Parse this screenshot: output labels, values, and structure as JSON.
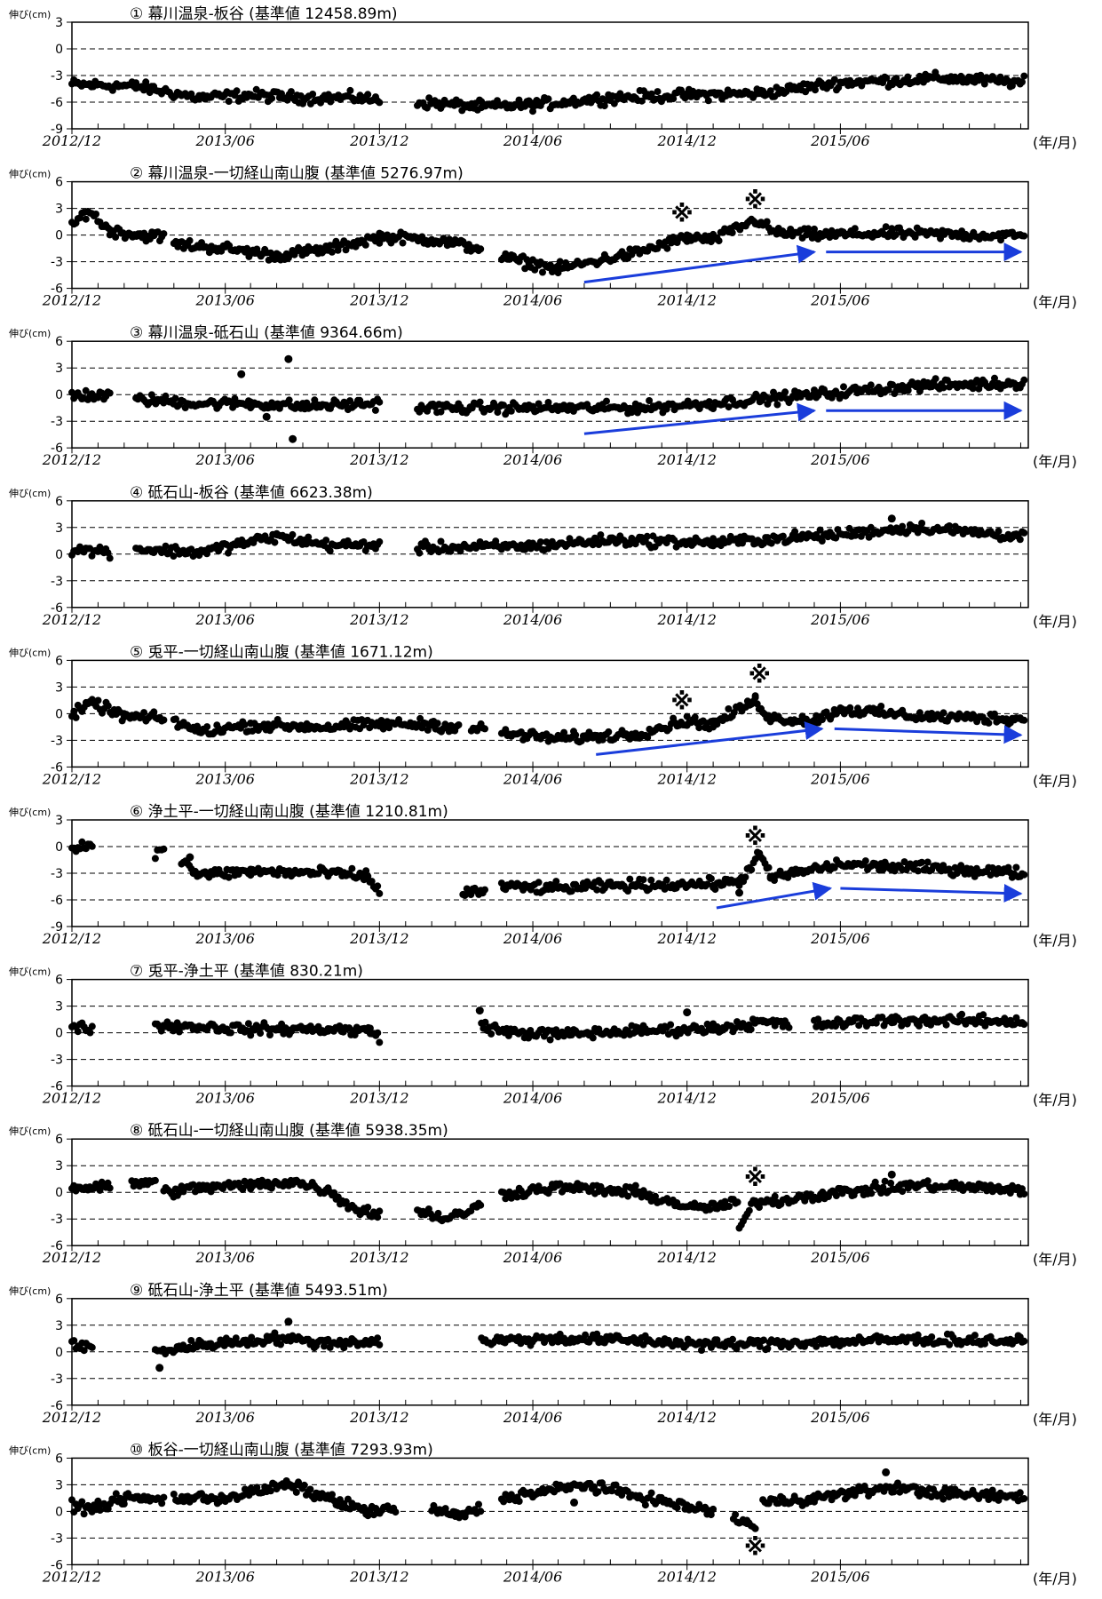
{
  "x_unit_label": "(年/月)",
  "y_unit_label": "伸び(cm)",
  "colors": {
    "dots": "#000000",
    "arrows": "#1a3ddb",
    "grid": "#000000",
    "frame": "#000000"
  },
  "x_ticks": [
    "2012/12",
    "2013/06",
    "2013/12",
    "2014/06",
    "2014/12",
    "2015/06"
  ],
  "chart_data": [
    {
      "type": "scatter",
      "title": "① 幕川温泉-板谷 (基準値 12458.89m)",
      "ylim": [
        -9,
        3
      ],
      "yticks": [
        3,
        0,
        -3,
        -6,
        -9
      ],
      "segments": [
        {
          "x": [
            "2012-12-01",
            "2013-02-15",
            "2013-05-01",
            "2013-07-01",
            "2013-09-01",
            "2013-11-01",
            "2013-12-01"
          ],
          "y": [
            -4.0,
            -4.2,
            -5.5,
            -5.2,
            -5.5,
            -5.5,
            -5.8
          ]
        },
        {
          "x": [
            "2014-01-15",
            "2014-04-01",
            "2014-06-01",
            "2014-09-01",
            "2014-12-01",
            "2015-03-01",
            "2015-06-01",
            "2015-08-20",
            "2015-10-01",
            "2016-01-05"
          ],
          "y": [
            -6.0,
            -6.5,
            -6.3,
            -5.5,
            -5.2,
            -5.0,
            -3.8,
            -3.5,
            -3.3,
            -3.8
          ]
        }
      ],
      "marks": [],
      "arrows": []
    },
    {
      "type": "scatter",
      "title": "② 幕川温泉-一切経山南山腹 (基準値 5276.97m)",
      "ylim": [
        -6,
        6
      ],
      "yticks": [
        6,
        3,
        0,
        -3,
        -6
      ],
      "segments": [
        {
          "x": [
            "2012-12-01",
            "2012-12-20",
            "2013-01-15",
            "2013-02-20",
            "2013-03-20"
          ],
          "y": [
            1.0,
            2.8,
            0.5,
            0.0,
            -0.2
          ]
        },
        {
          "x": [
            "2013-04-01",
            "2013-06-01",
            "2013-08-01",
            "2013-10-01",
            "2013-12-01",
            "2014-02-01",
            "2014-03-31"
          ],
          "y": [
            -1.0,
            -1.5,
            -2.3,
            -1.6,
            -0.2,
            -0.5,
            -1.5
          ]
        },
        {
          "x": [
            "2014-04-25",
            "2014-07-01",
            "2014-10-01",
            "2014-12-01",
            "2015-01-01",
            "2015-02-20",
            "2015-03-15",
            "2015-05-01",
            "2015-08-01",
            "2016-01-05"
          ],
          "y": [
            -2.5,
            -3.8,
            -2.0,
            -0.3,
            -0.5,
            1.7,
            0.3,
            0.0,
            0.2,
            -0.1
          ]
        }
      ],
      "marks": [
        {
          "x": "2014-11-25",
          "y": 2.5
        },
        {
          "x": "2015-02-20",
          "y": 4.0
        }
      ],
      "arrows": [
        {
          "x1": "2014-08-01",
          "y1": -5.3,
          "x2": "2015-05-01",
          "y2": -1.9
        },
        {
          "x1": "2015-05-15",
          "y1": -1.9,
          "x2": "2016-01-01",
          "y2": -1.9
        }
      ]
    },
    {
      "type": "scatter",
      "title": "③ 幕川温泉-砥石山 (基準値 9364.66m)",
      "ylim": [
        -6,
        6
      ],
      "yticks": [
        6,
        3,
        0,
        -3,
        -6
      ],
      "segments": [
        {
          "x": [
            "2012-12-01",
            "2013-01-15"
          ],
          "y": [
            0.0,
            -0.2
          ]
        },
        {
          "x": [
            "2013-02-15",
            "2013-05-01",
            "2013-07-01",
            "2013-09-01",
            "2013-12-01"
          ],
          "y": [
            -0.5,
            -1.0,
            -1.0,
            -1.3,
            -1.0
          ]
        },
        {
          "x": [
            "2014-01-15",
            "2014-06-01",
            "2014-10-01",
            "2015-01-01",
            "2015-05-01",
            "2015-09-01",
            "2016-01-05"
          ],
          "y": [
            -1.5,
            -1.5,
            -1.5,
            -1.0,
            0.0,
            1.0,
            1.3
          ]
        }
      ],
      "outliers": [
        {
          "x": "2013-08-15",
          "y": 4.0
        },
        {
          "x": "2013-06-20",
          "y": 2.3
        },
        {
          "x": "2013-08-20",
          "y": -5.0
        },
        {
          "x": "2013-07-20",
          "y": -2.5
        }
      ],
      "marks": [],
      "arrows": [
        {
          "x1": "2014-08-01",
          "y1": -4.4,
          "x2": "2015-05-01",
          "y2": -1.8
        },
        {
          "x1": "2015-05-15",
          "y1": -1.8,
          "x2": "2016-01-01",
          "y2": -1.8
        }
      ]
    },
    {
      "type": "scatter",
      "title": "④ 砥石山-板谷 (基準値 6623.38m)",
      "ylim": [
        -6,
        6
      ],
      "yticks": [
        6,
        3,
        0,
        -3,
        -6
      ],
      "segments": [
        {
          "x": [
            "2012-12-01",
            "2013-01-15"
          ],
          "y": [
            0.5,
            0.3
          ]
        },
        {
          "x": [
            "2013-02-15",
            "2013-05-01",
            "2013-08-01",
            "2013-10-01",
            "2013-12-01"
          ],
          "y": [
            0.6,
            0.2,
            2.0,
            1.0,
            1.0
          ]
        },
        {
          "x": [
            "2014-01-15",
            "2014-06-01",
            "2014-09-01",
            "2015-01-01",
            "2015-05-01",
            "2015-09-01",
            "2016-01-05"
          ],
          "y": [
            0.7,
            0.9,
            1.6,
            1.3,
            2.0,
            3.0,
            2.0
          ]
        }
      ],
      "outliers": [
        {
          "x": "2015-08-01",
          "y": 4.0
        }
      ],
      "marks": [],
      "arrows": []
    },
    {
      "type": "scatter",
      "title": "⑤ 兎平-一切経山南山腹 (基準値 1671.12m)",
      "ylim": [
        -6,
        6
      ],
      "yticks": [
        6,
        3,
        0,
        -3,
        -6
      ],
      "segments": [
        {
          "x": [
            "2012-12-01",
            "2012-12-25",
            "2013-02-01",
            "2013-03-20"
          ],
          "y": [
            -0.2,
            1.2,
            -0.3,
            -0.6
          ]
        },
        {
          "x": [
            "2013-04-01",
            "2013-05-01",
            "2013-07-01",
            "2013-10-01",
            "2013-12-01",
            "2014-02-01",
            "2014-03-05"
          ],
          "y": [
            -0.8,
            -2.0,
            -1.3,
            -1.5,
            -1.2,
            -1.2,
            -1.6
          ]
        },
        {
          "x": [
            "2014-03-20",
            "2014-04-05"
          ],
          "y": [
            -1.7,
            -1.7
          ]
        },
        {
          "x": [
            "2014-04-25",
            "2014-07-01",
            "2014-10-01",
            "2014-12-01",
            "2015-01-01",
            "2015-02-20",
            "2015-03-10",
            "2015-05-01",
            "2015-06-01",
            "2015-09-01",
            "2016-01-05"
          ],
          "y": [
            -2.2,
            -2.8,
            -2.3,
            -0.8,
            -1.2,
            1.5,
            -0.5,
            -0.8,
            0.5,
            -0.3,
            -0.6
          ]
        }
      ],
      "marks": [
        {
          "x": "2014-11-25",
          "y": 1.5
        },
        {
          "x": "2015-02-25",
          "y": 4.5
        }
      ],
      "arrows": [
        {
          "x1": "2014-08-15",
          "y1": -4.6,
          "x2": "2015-05-10",
          "y2": -1.7
        },
        {
          "x1": "2015-05-25",
          "y1": -1.7,
          "x2": "2016-01-01",
          "y2": -2.4
        }
      ]
    },
    {
      "type": "scatter",
      "title": "⑥ 浄土平-一切経山南山腹 (基準値 1210.81m)",
      "ylim": [
        -9,
        3
      ],
      "yticks": [
        3,
        0,
        -3,
        -6,
        -9
      ],
      "segments": [
        {
          "x": [
            "2012-12-01",
            "2012-12-25"
          ],
          "y": [
            -0.3,
            0.4
          ]
        },
        {
          "x": [
            "2013-03-10",
            "2013-03-20"
          ],
          "y": [
            -0.6,
            -0.7
          ]
        },
        {
          "x": [
            "2013-04-10",
            "2013-05-01",
            "2013-07-01",
            "2013-10-01",
            "2013-11-15",
            "2013-12-01"
          ],
          "y": [
            -1.5,
            -3.2,
            -2.8,
            -3.0,
            -3.3,
            -5.0
          ]
        },
        {
          "x": [
            "2014-03-10",
            "2014-04-05"
          ],
          "y": [
            -5.2,
            -5.0
          ]
        },
        {
          "x": [
            "2014-04-25",
            "2014-07-01",
            "2014-10-01",
            "2015-01-01",
            "2015-02-01",
            "2015-02-25",
            "2015-03-10",
            "2015-06-01",
            "2015-10-01",
            "2016-01-05"
          ],
          "y": [
            -4.5,
            -4.7,
            -4.3,
            -4.2,
            -4.0,
            -0.8,
            -3.5,
            -2.0,
            -2.5,
            -3.0
          ]
        }
      ],
      "outliers": [
        {
          "x": "2013-04-20",
          "y": -1.2
        },
        {
          "x": "2015-02-01",
          "y": -5.2
        }
      ],
      "marks": [
        {
          "x": "2015-02-20",
          "y": 1.2
        }
      ],
      "arrows": [
        {
          "x1": "2015-01-05",
          "y1": -6.9,
          "x2": "2015-05-20",
          "y2": -4.7
        },
        {
          "x1": "2015-06-01",
          "y1": -4.7,
          "x2": "2016-01-01",
          "y2": -5.3
        }
      ]
    },
    {
      "type": "scatter",
      "title": "⑦ 兎平-浄土平 (基準値 830.21m)",
      "ylim": [
        -6,
        6
      ],
      "yticks": [
        6,
        3,
        0,
        -3,
        -6
      ],
      "segments": [
        {
          "x": [
            "2012-12-01",
            "2012-12-25"
          ],
          "y": [
            0.7,
            0.6
          ]
        },
        {
          "x": [
            "2013-03-10",
            "2013-05-01",
            "2013-07-01",
            "2013-10-01",
            "2013-11-20",
            "2013-12-01"
          ],
          "y": [
            0.8,
            0.7,
            0.4,
            0.4,
            0.2,
            -0.4
          ]
        },
        {
          "x": [
            "2014-04-01",
            "2014-05-01",
            "2014-07-01",
            "2014-10-01",
            "2015-01-01",
            "2015-03-01",
            "2015-04-01"
          ],
          "y": [
            0.8,
            0.1,
            -0.2,
            0.2,
            0.5,
            1.2,
            0.9
          ]
        },
        {
          "x": [
            "2015-05-01",
            "2015-08-01",
            "2016-01-05"
          ],
          "y": [
            0.9,
            1.4,
            1.3
          ]
        }
      ],
      "outliers": [
        {
          "x": "2014-03-30",
          "y": 2.5
        },
        {
          "x": "2014-12-01",
          "y": 2.3
        }
      ],
      "marks": [],
      "arrows": []
    },
    {
      "type": "scatter",
      "title": "⑧ 砥石山-一切経山南山腹 (基準値 5938.35m)",
      "ylim": [
        -6,
        6
      ],
      "yticks": [
        6,
        3,
        0,
        -3,
        -6
      ],
      "segments": [
        {
          "x": [
            "2012-12-01",
            "2013-01-15"
          ],
          "y": [
            0.5,
            0.6
          ]
        },
        {
          "x": [
            "2013-02-10",
            "2013-03-10"
          ],
          "y": [
            1.0,
            1.2
          ]
        },
        {
          "x": [
            "2013-03-20",
            "2013-05-01",
            "2013-07-01",
            "2013-08-20",
            "2013-10-01",
            "2013-11-01",
            "2013-12-01"
          ],
          "y": [
            0.0,
            0.5,
            0.8,
            1.2,
            0.2,
            -1.8,
            -2.5
          ]
        },
        {
          "x": [
            "2014-01-15",
            "2014-02-20",
            "2014-03-31"
          ],
          "y": [
            -2.0,
            -3.0,
            -1.5
          ]
        },
        {
          "x": [
            "2014-04-25",
            "2014-07-01",
            "2014-10-01",
            "2014-12-10",
            "2015-01-15",
            "2015-01-30"
          ],
          "y": [
            -0.2,
            0.6,
            0.0,
            -1.8,
            -1.5,
            -1.2
          ]
        },
        {
          "x": [
            "2015-02-01",
            "2015-02-20",
            "2015-03-20",
            "2015-04-15",
            "2015-06-01",
            "2015-09-01",
            "2016-01-05"
          ],
          "y": [
            -4.0,
            -1.0,
            -1.0,
            -0.5,
            0.0,
            0.8,
            0.3
          ]
        }
      ],
      "outliers": [
        {
          "x": "2015-08-01",
          "y": 2.0
        }
      ],
      "marks": [
        {
          "x": "2015-02-20",
          "y": 1.7
        }
      ],
      "arrows": []
    },
    {
      "type": "scatter",
      "title": "⑨ 砥石山-浄土平 (基準値 5493.51m)",
      "ylim": [
        -6,
        6
      ],
      "yticks": [
        6,
        3,
        0,
        -3,
        -6
      ],
      "segments": [
        {
          "x": [
            "2012-12-01",
            "2012-12-25"
          ],
          "y": [
            0.7,
            0.5
          ]
        },
        {
          "x": [
            "2013-03-10",
            "2013-05-01",
            "2013-08-01",
            "2013-10-01",
            "2013-12-01"
          ],
          "y": [
            0.0,
            0.8,
            1.5,
            1.0,
            1.2
          ]
        },
        {
          "x": [
            "2014-04-01",
            "2014-07-01",
            "2014-10-01",
            "2015-01-01",
            "2015-05-01",
            "2015-09-01",
            "2016-01-05"
          ],
          "y": [
            1.2,
            1.5,
            1.3,
            0.8,
            1.1,
            1.4,
            1.2
          ]
        }
      ],
      "outliers": [
        {
          "x": "2013-03-15",
          "y": -1.8
        },
        {
          "x": "2013-08-15",
          "y": 3.4
        }
      ],
      "marks": [],
      "arrows": []
    },
    {
      "type": "scatter",
      "title": "⑩ 板谷-一切経山南山腹 (基準値 7293.93m)",
      "ylim": [
        -6,
        6
      ],
      "yticks": [
        6,
        3,
        0,
        -3,
        -6
      ],
      "segments": [
        {
          "x": [
            "2012-12-01",
            "2013-01-01",
            "2013-02-01",
            "2013-03-20"
          ],
          "y": [
            0.5,
            0.5,
            1.5,
            1.3
          ]
        },
        {
          "x": [
            "2013-04-01",
            "2013-06-01",
            "2013-08-15",
            "2013-10-01",
            "2013-11-15",
            "2013-12-20"
          ],
          "y": [
            1.5,
            1.5,
            3.0,
            1.5,
            0.0,
            0.2
          ]
        },
        {
          "x": [
            "2014-02-01",
            "2014-03-01",
            "2014-03-31"
          ],
          "y": [
            0.3,
            -0.5,
            0.3
          ]
        },
        {
          "x": [
            "2014-04-25",
            "2014-07-01",
            "2014-08-01",
            "2014-10-01",
            "2014-12-01",
            "2015-01-01"
          ],
          "y": [
            1.5,
            2.5,
            3.0,
            1.8,
            0.5,
            0.0
          ]
        },
        {
          "x": [
            "2015-01-25",
            "2015-02-10",
            "2015-02-20"
          ],
          "y": [
            -0.8,
            -1.2,
            -2.0
          ]
        },
        {
          "x": [
            "2015-03-01",
            "2015-05-01",
            "2015-08-01",
            "2015-10-01",
            "2016-01-05"
          ],
          "y": [
            1.0,
            1.5,
            2.7,
            2.0,
            1.6
          ]
        }
      ],
      "outliers": [
        {
          "x": "2015-07-25",
          "y": 4.4
        },
        {
          "x": "2014-07-20",
          "y": 1.0
        }
      ],
      "marks": [
        {
          "x": "2015-02-20",
          "y": -3.9
        }
      ],
      "arrows": []
    }
  ]
}
